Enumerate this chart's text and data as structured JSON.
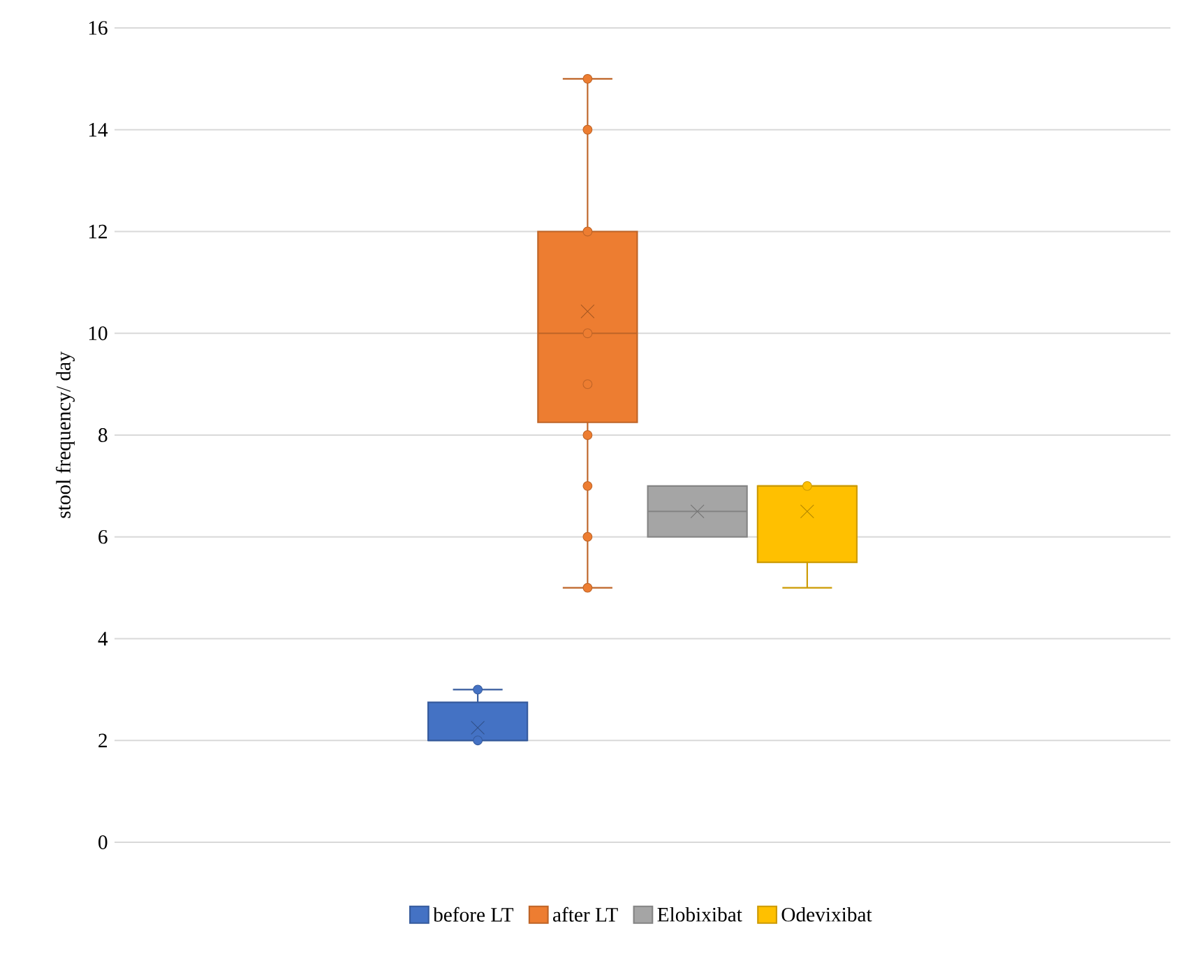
{
  "chart_data": {
    "type": "box",
    "ylabel": "stool frequency/ day",
    "categories": [
      null
    ],
    "ylim": [
      0,
      16
    ],
    "yticks": [
      0,
      2,
      4,
      6,
      8,
      10,
      12,
      14,
      16
    ],
    "grid": "y",
    "legend": "bottom",
    "series": [
      {
        "name": "before LT",
        "color": "#4472c4",
        "boxes": [
          {
            "low": 2,
            "q1": 2,
            "median": 2,
            "q3": 2.75,
            "high": 3,
            "mean": 2.25
          }
        ]
      },
      {
        "type": "scatter",
        "color": "#4472c4",
        "x": [
          null,
          null
        ],
        "values": [
          2,
          3
        ]
      },
      {
        "name": "after LT",
        "color": "#ed7d31",
        "boxes": [
          {
            "low": 5,
            "q1": 8.25,
            "median": 10,
            "q3": 12,
            "high": 15,
            "mean": 10.43
          }
        ]
      },
      {
        "type": "scatter",
        "color": "#ed7d31",
        "x": [
          null,
          null,
          null,
          null,
          null,
          null,
          null,
          null,
          null
        ],
        "values": [
          5,
          6,
          7,
          8,
          9,
          10,
          12,
          14,
          15
        ]
      },
      {
        "name": "Elobixibat",
        "color": "#a5a5a5",
        "boxes": [
          {
            "low": 6,
            "q1": 6,
            "median": 6.5,
            "q3": 7,
            "high": 7,
            "mean": 6.5
          }
        ]
      },
      {
        "name": "Odevixibat",
        "color": "#ffc000",
        "boxes": [
          {
            "low": 5,
            "q1": 5.5,
            "median": 7,
            "q3": 7,
            "high": 7,
            "mean": 6.5
          }
        ]
      },
      {
        "type": "scatter",
        "color": "#ffc000",
        "x": [
          null
        ],
        "values": [
          7
        ]
      }
    ]
  }
}
